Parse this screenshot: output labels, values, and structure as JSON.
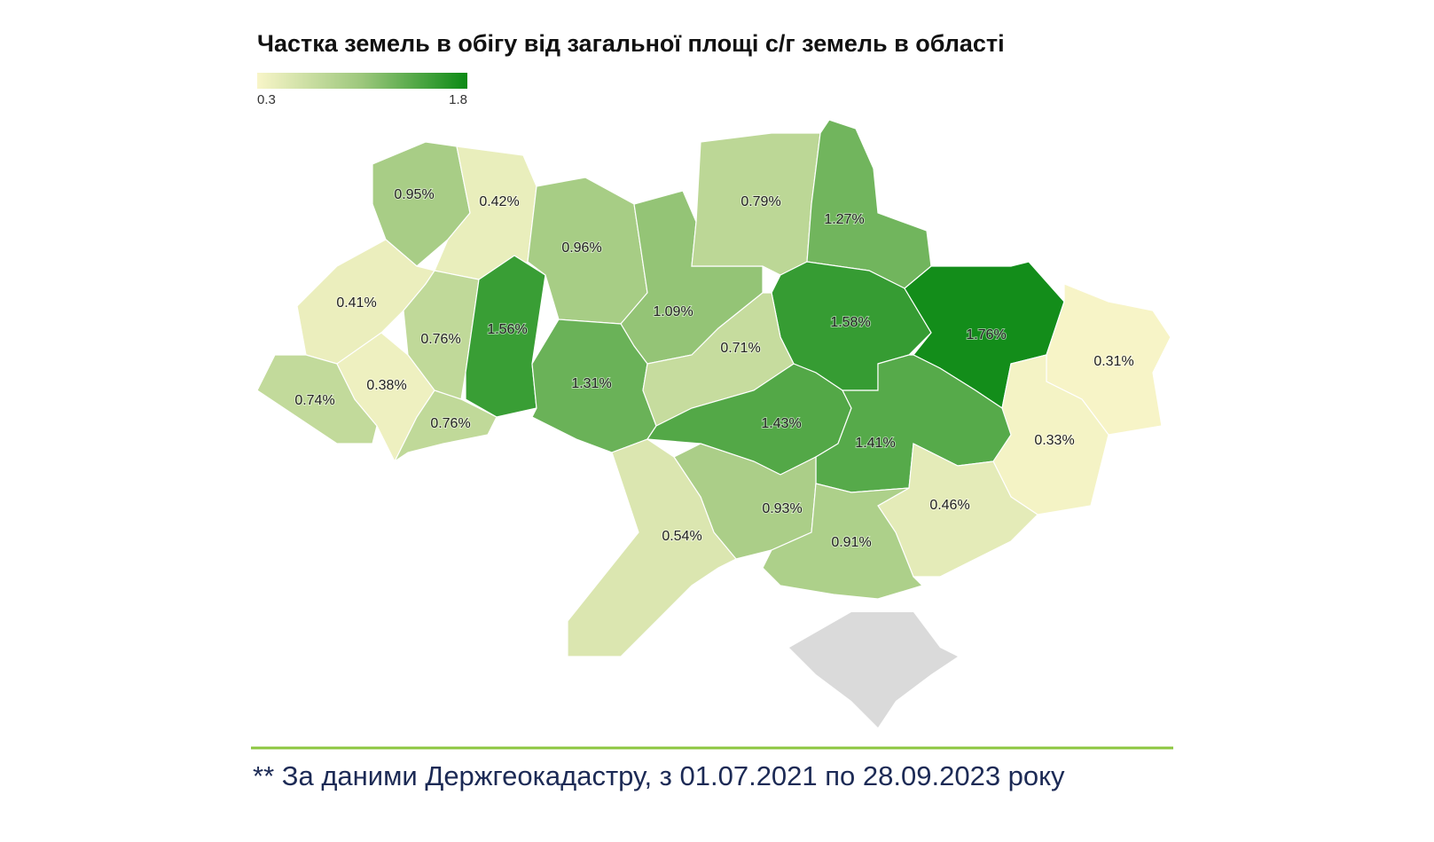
{
  "chart_data": {
    "type": "choropleth",
    "title": "Частка земель в обігу від загальної площі с/г земель в області",
    "colorbar": {
      "lim": [
        0.3,
        1.8
      ],
      "ticks": [
        0.3,
        1.8
      ],
      "colors": [
        "#f8f5c8",
        "#9cc77c",
        "#0b8a14"
      ]
    },
    "values": [
      0.95,
      0.42,
      0.41,
      0.76,
      1.56,
      0.96,
      1.09,
      0.79,
      1.27,
      1.58,
      1.76,
      0.31,
      0.33,
      0.74,
      0.38,
      0.76,
      1.31,
      0.71,
      1.43,
      1.41,
      0.46,
      0.93,
      0.91,
      0.54
    ],
    "value_labels": [
      "0.95%",
      "0.42%",
      "0.41%",
      "0.76%",
      "1.56%",
      "0.96%",
      "1.09%",
      "0.79%",
      "1.27%",
      "1.58%",
      "1.76%",
      "0.31%",
      "0.33%",
      "0.74%",
      "0.38%",
      "0.76%",
      "1.31%",
      "0.71%",
      "1.43%",
      "1.41%",
      "0.46%",
      "0.93%",
      "0.91%",
      "0.54%"
    ],
    "footnote": "** За даними Держгеокадастру, з 01.07.2021 по 28.09.2023 року"
  }
}
